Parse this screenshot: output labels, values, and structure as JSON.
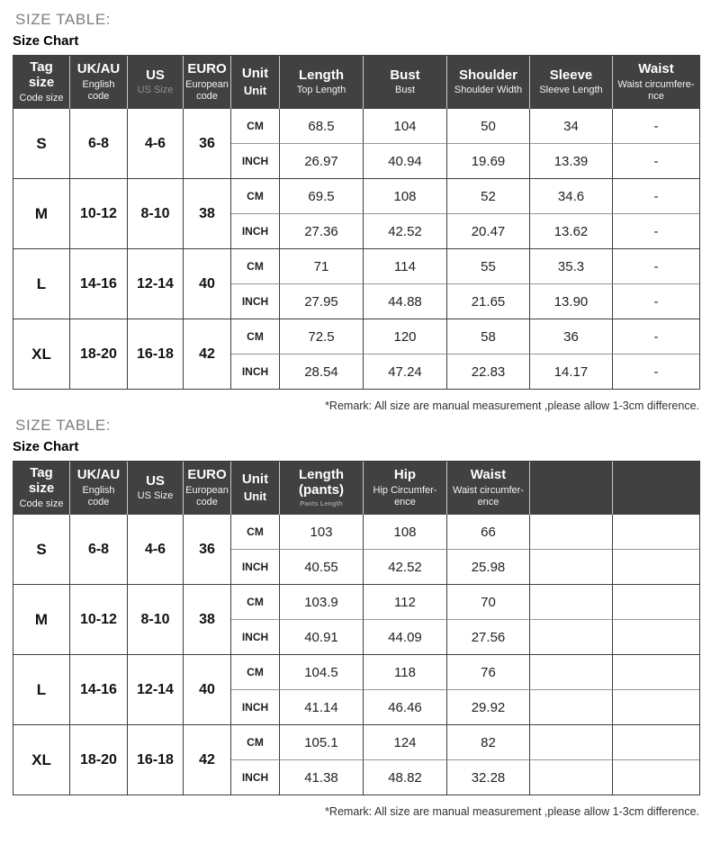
{
  "palette": {
    "header_bg": "#414141",
    "header_text": "#ffffff",
    "muted_header_text": "#8f8f8f",
    "body_text": "#222222",
    "eyebrow_text": "#7d7d7d"
  },
  "units": {
    "cm": "CM",
    "inch": "INCH"
  },
  "section_top": {
    "eyebrow": "SIZE TABLE:",
    "title": "Size Chart",
    "remark": "*Remark: All size are manual measurement ,please allow 1-3cm difference."
  },
  "section_bottom": {
    "eyebrow": "SIZE TABLE:",
    "title": "Size Chart",
    "remark": "*Remark: All size are manual measurement ,please allow 1-3cm difference."
  },
  "table_top": {
    "headers": [
      {
        "main": "Tag size",
        "sub": "Code size"
      },
      {
        "main": "UK/AU",
        "sub": "English code"
      },
      {
        "main": "US",
        "sub": "US Size"
      },
      {
        "main": "EURO",
        "sub": "European code"
      },
      {
        "main": "Unit",
        "sub": "Unit"
      },
      {
        "main": "Length",
        "sub": "Top Length"
      },
      {
        "main": "Bust",
        "sub": "Bust"
      },
      {
        "main": "Shoulder",
        "sub": "Shoulder Width"
      },
      {
        "main": "Sleeve",
        "sub": "Sleeve Length"
      },
      {
        "main": "Waist",
        "sub": "Waist circumfere- nce"
      }
    ],
    "rows": [
      {
        "tag": "S",
        "uk": "6-8",
        "us": "4-6",
        "euro": "36",
        "cm": [
          "68.5",
          "104",
          "50",
          "34",
          "-"
        ],
        "inch": [
          "26.97",
          "40.94",
          "19.69",
          "13.39",
          "-"
        ]
      },
      {
        "tag": "M",
        "uk": "10-12",
        "us": "8-10",
        "euro": "38",
        "cm": [
          "69.5",
          "108",
          "52",
          "34.6",
          "-"
        ],
        "inch": [
          "27.36",
          "42.52",
          "20.47",
          "13.62",
          "-"
        ]
      },
      {
        "tag": "L",
        "uk": "14-16",
        "us": "12-14",
        "euro": "40",
        "cm": [
          "71",
          "114",
          "55",
          "35.3",
          "-"
        ],
        "inch": [
          "27.95",
          "44.88",
          "21.65",
          "13.90",
          "-"
        ]
      },
      {
        "tag": "XL",
        "uk": "18-20",
        "us": "16-18",
        "euro": "42",
        "cm": [
          "72.5",
          "120",
          "58",
          "36",
          "-"
        ],
        "inch": [
          "28.54",
          "47.24",
          "22.83",
          "14.17",
          "-"
        ]
      }
    ]
  },
  "table_bottom": {
    "headers": [
      {
        "main": "Tag size",
        "sub": "Code size"
      },
      {
        "main": "UK/AU",
        "sub": "English code"
      },
      {
        "main": "US",
        "sub": "US Size"
      },
      {
        "main": "EURO",
        "sub": "European code"
      },
      {
        "main": "Unit",
        "sub": "Unit"
      },
      {
        "main": "Length (pants)",
        "sub": "Pants Length"
      },
      {
        "main": "Hip",
        "sub": "Hip Circumfer- ence"
      },
      {
        "main": "Waist",
        "sub": "Waist circumfer- ence"
      },
      {
        "main": "",
        "sub": ""
      },
      {
        "main": "",
        "sub": ""
      }
    ],
    "rows": [
      {
        "tag": "S",
        "uk": "6-8",
        "us": "4-6",
        "euro": "36",
        "cm": [
          "103",
          "108",
          "66",
          "",
          ""
        ],
        "inch": [
          "40.55",
          "42.52",
          "25.98",
          "",
          ""
        ]
      },
      {
        "tag": "M",
        "uk": "10-12",
        "us": "8-10",
        "euro": "38",
        "cm": [
          "103.9",
          "112",
          "70",
          "",
          ""
        ],
        "inch": [
          "40.91",
          "44.09",
          "27.56",
          "",
          ""
        ]
      },
      {
        "tag": "L",
        "uk": "14-16",
        "us": "12-14",
        "euro": "40",
        "cm": [
          "104.5",
          "118",
          "76",
          "",
          ""
        ],
        "inch": [
          "41.14",
          "46.46",
          "29.92",
          "",
          ""
        ]
      },
      {
        "tag": "XL",
        "uk": "18-20",
        "us": "16-18",
        "euro": "42",
        "cm": [
          "105.1",
          "124",
          "82",
          "",
          ""
        ],
        "inch": [
          "41.38",
          "48.82",
          "32.28",
          "",
          ""
        ]
      }
    ]
  }
}
